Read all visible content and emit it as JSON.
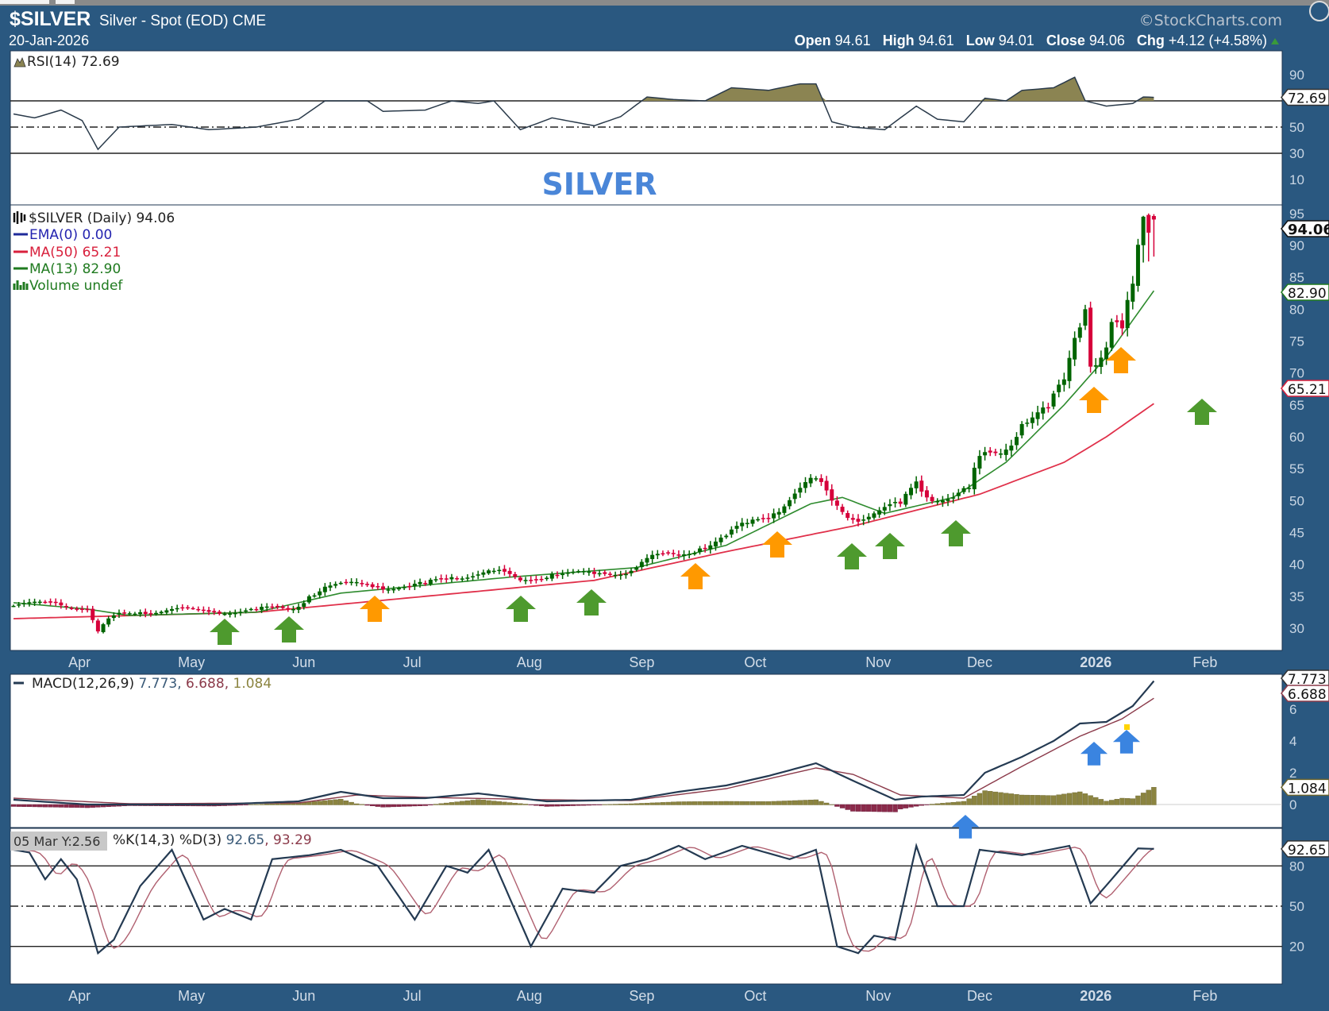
{
  "header": {
    "symbol": "$SILVER",
    "name": "Silver - Spot (EOD) CME",
    "date": "20-Jan-2026",
    "brand": "©StockCharts.com",
    "open_label": "Open",
    "open": "94.61",
    "high_label": "High",
    "high": "94.61",
    "low_label": "Low",
    "low": "94.01",
    "close_label": "Close",
    "close": "94.06",
    "chg_label": "Chg",
    "chg": "+4.12 (+4.58%)"
  },
  "title_annotation": "SILVER",
  "tooltip": "05 Mar Y:2.56",
  "colors": {
    "background": "#2a5880",
    "up": "#006400",
    "down": "#d6003a",
    "ma50": "#e0304a",
    "ma13": "#2e8b2e",
    "rsi_fill": "#8b8452",
    "macd": "#243a52",
    "signal": "#8b3a4a",
    "hist": "#8b8440",
    "arrow_green": "#4e9a2e",
    "arrow_orange": "#ff9900",
    "arrow_blue": "#3a84e0",
    "title": "#4a86d8"
  },
  "chart_data": [
    {
      "type": "candlestick",
      "title": "$SILVER (Daily) 94.06",
      "x_unit": "trading-day index (0 = mid-Mar 2025, 216 = 20-Jan-2026)",
      "ylim": [
        26.5,
        96.4
      ],
      "y_ticks": [
        "30",
        "35",
        "40",
        "45",
        "50",
        "55",
        "60",
        "65",
        "70",
        "75",
        "80",
        "85",
        "90",
        "95"
      ],
      "x_ticks": [
        {
          "label": "Apr",
          "x": 12.5
        },
        {
          "label": "May",
          "x": 33.7
        },
        {
          "label": "Jun",
          "x": 55
        },
        {
          "label": "Jul",
          "x": 75.5
        },
        {
          "label": "Aug",
          "x": 97.7
        },
        {
          "label": "Sep",
          "x": 119
        },
        {
          "label": "Oct",
          "x": 140.5
        },
        {
          "label": "Nov",
          "x": 163.8
        },
        {
          "label": "Dec",
          "x": 183
        },
        {
          "label": "2026",
          "x": 205
        },
        {
          "label": "Feb",
          "x": 225.7
        }
      ],
      "legend": {
        "ema": "EMA(0) 0.00",
        "ma50": "MA(50) 65.21",
        "ma13": "MA(13) 82.90",
        "volume": "Volume undef"
      },
      "last_tags": {
        "close": "94.06",
        "ma13": "82.90",
        "ma50": "65.21"
      },
      "close_anchors": [
        [
          0,
          33.5
        ],
        [
          8,
          34
        ],
        [
          14,
          33
        ],
        [
          16,
          29.5
        ],
        [
          19,
          32
        ],
        [
          24,
          32.5
        ],
        [
          30,
          33
        ],
        [
          38,
          32.5
        ],
        [
          46,
          33
        ],
        [
          53,
          33
        ],
        [
          56,
          35
        ],
        [
          59,
          36.5
        ],
        [
          66,
          37
        ],
        [
          69,
          36.5
        ],
        [
          75,
          36.5
        ],
        [
          78,
          37
        ],
        [
          83,
          38
        ],
        [
          91,
          39
        ],
        [
          96,
          37.5
        ],
        [
          102,
          38.5
        ],
        [
          110,
          38.5
        ],
        [
          117,
          39
        ],
        [
          120,
          41
        ],
        [
          126,
          41.5
        ],
        [
          130,
          42.5
        ],
        [
          135,
          44.5
        ],
        [
          139,
          46.5
        ],
        [
          144,
          48
        ],
        [
          149,
          52
        ],
        [
          152,
          53.5
        ],
        [
          155,
          50
        ],
        [
          159,
          47
        ],
        [
          163,
          48
        ],
        [
          168,
          49.5
        ],
        [
          171,
          53
        ],
        [
          173,
          50.5
        ],
        [
          178,
          50.5
        ],
        [
          181,
          52
        ],
        [
          183,
          57
        ],
        [
          188,
          58
        ],
        [
          191,
          62
        ],
        [
          196,
          64.5
        ],
        [
          199,
          69
        ],
        [
          201,
          75.5
        ],
        [
          203,
          80
        ],
        [
          204,
          71
        ],
        [
          207,
          74
        ],
        [
          208,
          78
        ],
        [
          210,
          77
        ],
        [
          212,
          84
        ],
        [
          214,
          94.5
        ],
        [
          215,
          92
        ],
        [
          216,
          94.06
        ]
      ],
      "ma50_anchors": [
        [
          0,
          31.5
        ],
        [
          46,
          32.5
        ],
        [
          78,
          35
        ],
        [
          110,
          37.5
        ],
        [
          135,
          42
        ],
        [
          159,
          46
        ],
        [
          183,
          51
        ],
        [
          199,
          56
        ],
        [
          207,
          60
        ],
        [
          216,
          65.21
        ]
      ],
      "ma13_anchors": [
        [
          0,
          34
        ],
        [
          14,
          33
        ],
        [
          22,
          32
        ],
        [
          46,
          32.5
        ],
        [
          62,
          35.5
        ],
        [
          94,
          38
        ],
        [
          118,
          39.5
        ],
        [
          135,
          43
        ],
        [
          151,
          49.5
        ],
        [
          157,
          50.5
        ],
        [
          165,
          48
        ],
        [
          178,
          50.5
        ],
        [
          188,
          56
        ],
        [
          199,
          65
        ],
        [
          207,
          72.5
        ],
        [
          216,
          82.9
        ]
      ]
    },
    {
      "type": "line",
      "title": "RSI(14) 72.69",
      "ylim": [
        0,
        100
      ],
      "y_ticks": [
        "90",
        "50",
        "30",
        "10"
      ],
      "levels": [
        70,
        50,
        30
      ],
      "last_tag": "72.69",
      "anchors": [
        [
          0,
          60
        ],
        [
          4,
          57
        ],
        [
          9,
          63
        ],
        [
          13,
          55
        ],
        [
          16,
          33
        ],
        [
          20,
          50
        ],
        [
          30,
          52
        ],
        [
          37,
          48
        ],
        [
          46,
          50
        ],
        [
          54,
          56
        ],
        [
          59,
          70
        ],
        [
          67,
          70
        ],
        [
          70,
          62
        ],
        [
          78,
          63
        ],
        [
          83,
          70
        ],
        [
          88,
          68
        ],
        [
          91,
          70
        ],
        [
          96,
          48
        ],
        [
          102,
          57
        ],
        [
          110,
          51
        ],
        [
          115,
          58
        ],
        [
          120,
          73
        ],
        [
          125,
          71
        ],
        [
          131,
          70
        ],
        [
          136,
          80
        ],
        [
          143,
          78
        ],
        [
          149,
          83
        ],
        [
          152,
          83
        ],
        [
          155,
          54
        ],
        [
          159,
          50
        ],
        [
          165,
          48
        ],
        [
          171,
          66
        ],
        [
          175,
          56
        ],
        [
          180,
          54
        ],
        [
          184,
          72
        ],
        [
          188,
          70
        ],
        [
          191,
          78
        ],
        [
          197,
          80
        ],
        [
          201,
          88
        ],
        [
          203,
          70
        ],
        [
          207,
          66
        ],
        [
          212,
          68
        ],
        [
          214,
          73
        ],
        [
          216,
          72.69
        ]
      ]
    },
    {
      "type": "line",
      "title_prefix": "MACD(12,26,9)",
      "values_text": {
        "macd": "7.773",
        "signal": "6.688",
        "hist": "1.084"
      },
      "y_ticks": [
        "6",
        "4",
        "2",
        "0"
      ],
      "macd_anchors": [
        [
          0,
          0.3
        ],
        [
          14,
          0
        ],
        [
          22,
          0
        ],
        [
          38,
          0
        ],
        [
          54,
          0.2
        ],
        [
          62,
          0.8
        ],
        [
          70,
          0.4
        ],
        [
          78,
          0.4
        ],
        [
          88,
          0.7
        ],
        [
          101,
          0.2
        ],
        [
          117,
          0.3
        ],
        [
          126,
          0.8
        ],
        [
          135,
          1.2
        ],
        [
          143,
          1.8
        ],
        [
          152,
          2.6
        ],
        [
          159,
          1.5
        ],
        [
          167,
          0.3
        ],
        [
          172,
          0.5
        ],
        [
          180,
          0.6
        ],
        [
          184,
          2
        ],
        [
          191,
          3
        ],
        [
          197,
          4
        ],
        [
          202,
          5.1
        ],
        [
          207,
          5.2
        ],
        [
          212,
          6.2
        ],
        [
          216,
          7.773
        ]
      ],
      "signal_anchors": [
        [
          0,
          0.4
        ],
        [
          22,
          0.05
        ],
        [
          54,
          0.1
        ],
        [
          65,
          0.6
        ],
        [
          78,
          0.45
        ],
        [
          101,
          0.3
        ],
        [
          117,
          0.25
        ],
        [
          135,
          1.0
        ],
        [
          152,
          2.3
        ],
        [
          159,
          1.9
        ],
        [
          168,
          0.6
        ],
        [
          180,
          0.4
        ],
        [
          191,
          2.4
        ],
        [
          202,
          4.3
        ],
        [
          210,
          5.4
        ],
        [
          216,
          6.688
        ]
      ]
    },
    {
      "type": "line",
      "title_prefix": "%K(14,3) %D(3)",
      "values_text": {
        "k": "92.65",
        "d": "93.29"
      },
      "y_ticks": [
        "80",
        "50",
        "20"
      ],
      "levels": [
        80,
        50,
        20
      ],
      "last_tag": "92.65",
      "k_anchors": [
        [
          0,
          92
        ],
        [
          3,
          90
        ],
        [
          6,
          70
        ],
        [
          9,
          85
        ],
        [
          12,
          70
        ],
        [
          16,
          15
        ],
        [
          19,
          25
        ],
        [
          24,
          65
        ],
        [
          30,
          92
        ],
        [
          36,
          40
        ],
        [
          40,
          48
        ],
        [
          45,
          40
        ],
        [
          49,
          85
        ],
        [
          56,
          88
        ],
        [
          62,
          92
        ],
        [
          69,
          80
        ],
        [
          76,
          40
        ],
        [
          82,
          80
        ],
        [
          86,
          75
        ],
        [
          90,
          92
        ],
        [
          98,
          20
        ],
        [
          104,
          63
        ],
        [
          110,
          60
        ],
        [
          115,
          80
        ],
        [
          120,
          85
        ],
        [
          126,
          95
        ],
        [
          131,
          85
        ],
        [
          138,
          95
        ],
        [
          147,
          85
        ],
        [
          152,
          92
        ],
        [
          156,
          20
        ],
        [
          160,
          15
        ],
        [
          163,
          28
        ],
        [
          167,
          25
        ],
        [
          171,
          95
        ],
        [
          175,
          50
        ],
        [
          180,
          50
        ],
        [
          183,
          92
        ],
        [
          191,
          88
        ],
        [
          200,
          95
        ],
        [
          204,
          52
        ],
        [
          208,
          70
        ],
        [
          213,
          93
        ],
        [
          216,
          92.65
        ]
      ]
    }
  ]
}
